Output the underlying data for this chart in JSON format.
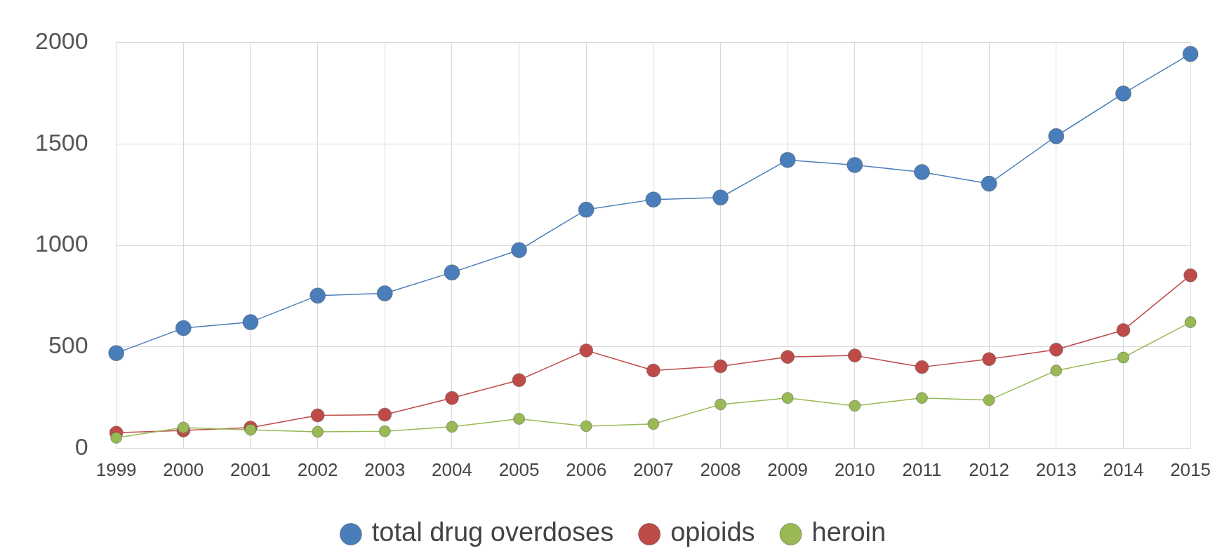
{
  "chart_data": {
    "type": "line",
    "categories": [
      "1999",
      "2000",
      "2001",
      "2002",
      "2003",
      "2004",
      "2005",
      "2006",
      "2007",
      "2008",
      "2009",
      "2010",
      "2011",
      "2012",
      "2013",
      "2014",
      "2015"
    ],
    "series": [
      {
        "name": "total drug overdoses",
        "color": "#4a7ebb",
        "values": [
          470,
          593,
          622,
          753,
          764,
          867,
          977,
          1176,
          1226,
          1236,
          1421,
          1396,
          1361,
          1304,
          1538,
          1748,
          1943
        ]
      },
      {
        "name": "opioids",
        "color": "#be4b48",
        "values": [
          78,
          89,
          103,
          163,
          167,
          249,
          337,
          483,
          384,
          405,
          451,
          458,
          401,
          440,
          487,
          583,
          853
        ]
      },
      {
        "name": "heroin",
        "color": "#98b954",
        "values": [
          53,
          103,
          92,
          82,
          85,
          107,
          146,
          110,
          121,
          217,
          249,
          210,
          249,
          238,
          384,
          448,
          622
        ]
      }
    ],
    "ylim": [
      0,
      2000
    ],
    "yticks": [
      0,
      500,
      1000,
      1500,
      2000
    ],
    "grid": true,
    "legend": "bottom",
    "marker": "circle",
    "line_style": "solid"
  }
}
